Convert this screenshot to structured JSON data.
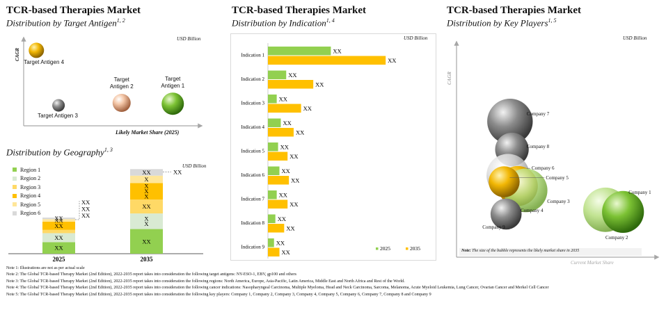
{
  "colors": {
    "indication_2025": "#92D050",
    "indication_2035": "#FFC000",
    "region_1": "#92D050",
    "region_2": "#D9EAD3",
    "region_3": "#FFD966",
    "region_4": "#FFC000",
    "region_5": "#FFE699",
    "region_6": "#D9D9D9",
    "axis": "#A6A6A6"
  },
  "panel_antigen": {
    "title": "TCR-based Therapies Market",
    "subtitle": "Distribution by Target Antigen",
    "subtitle_sup": "1, 2",
    "unit": "USD Billion",
    "ylabel": "CAGR",
    "xlabel": "Likely Market Share (2025)"
  },
  "panel_geography": {
    "subtitle": "Distribution by Geography",
    "subtitle_sup": "1, 3",
    "unit": "USD Billion"
  },
  "panel_indication": {
    "title": "TCR-based Therapies Market",
    "subtitle": "Distribution by Indication",
    "subtitle_sup": "1, 4",
    "unit": "USD Billion",
    "legend": [
      "2025",
      "2035"
    ]
  },
  "panel_players": {
    "title": "TCR-based Therapies Market",
    "subtitle": "Distribution by Key Players",
    "subtitle_sup": "1, 5",
    "unit": "USD Billion",
    "ylabel": "CAGR",
    "xlabel": "Current Market Share",
    "note_label": "Note:",
    "note_text": "The size of the bubble represents the likely market share in 2035"
  },
  "notes": [
    "Note 1: Illustrations are not as per actual scale",
    "Note 2: The Global TCR-based Therapy Market (2nd Edition), 2022-2035 report takes into consideration the following target antigens: NY-ESO-1, EBV, gp100 and others",
    "Note 3: The Global TCR-based Therapy Market (2nd Edition), 2022-2035 report takes into consideration the following regions: North America, Europe, Asia-Pacific, Latin America, Middle East and North Africa and Rest of the World.",
    "Note 4: The Global TCR-based Therapy Market (2nd Edition), 2022-2035 report takes into consideration the following cancer indications: Nasopharyngeal Carcinoma, Multiple Myeloma, Head and Neck Carcinoma, Sarcoma, Melanoma, Acute Myeloid Leukemia, Lung Cancer, Ovarian Cancer and Merkel Cell Cancer",
    "Note 5: The Global TCR-based Therapy Market (2nd Edition), 2022-2035 report takes into consideration the following key players: Company 1, Company 2, Company 3, Company 4, Company 5, Company 6, Company 7, Company 8 and Company 9"
  ],
  "chart_data": [
    {
      "type": "scatter",
      "id": "target-antigen",
      "title": "TCR-based Therapies Market",
      "subtitle": "Distribution by Target Antigen",
      "xlabel": "Likely Market Share (2025)",
      "ylabel": "CAGR",
      "grid": false,
      "points": [
        {
          "label": "Target Antigen 4",
          "x": 0.05,
          "y": 0.88,
          "size": 0.3,
          "color": "gold"
        },
        {
          "label": "Target Antigen 3",
          "x": 0.18,
          "y": 0.22,
          "size": 0.2,
          "color": "grey"
        },
        {
          "label": "Target Antigen 2",
          "x": 0.55,
          "y": 0.25,
          "size": 0.4,
          "color": "peach"
        },
        {
          "label": "Target Antigen 1",
          "x": 0.85,
          "y": 0.24,
          "size": 0.55,
          "color": "green"
        }
      ]
    },
    {
      "type": "bar",
      "id": "geography",
      "subtitle": "Distribution by Geography",
      "stacked": true,
      "categories": [
        "2025",
        "2035"
      ],
      "series": [
        {
          "name": "Region 1",
          "values": [
            14,
            30
          ],
          "labels": [
            "XX",
            "XX"
          ]
        },
        {
          "name": "Region 2",
          "values": [
            11,
            19
          ],
          "labels": [
            "XX",
            "X\nX"
          ]
        },
        {
          "name": "Region 3",
          "values": [
            4,
            17
          ],
          "labels": [
            "",
            "XX"
          ]
        },
        {
          "name": "Region 4",
          "values": [
            10,
            20
          ],
          "labels": [
            "XX",
            "X\nX\nX"
          ]
        },
        {
          "name": "Region 5",
          "values": [
            3,
            9
          ],
          "labels": [
            "XX",
            "X"
          ]
        },
        {
          "name": "Region 6",
          "values": [
            2,
            8
          ],
          "labels": [
            "XX",
            "XX"
          ]
        }
      ],
      "callouts": [
        {
          "category": "2025",
          "labels": [
            "XX",
            "XX",
            "XX"
          ]
        },
        {
          "category": "2035",
          "labels": [
            "XX"
          ]
        }
      ],
      "ylim": [
        0,
        110
      ],
      "legend": "top-left"
    },
    {
      "type": "bar",
      "id": "indication",
      "orientation": "horizontal",
      "subtitle": "Distribution by Indication",
      "categories": [
        "Indication 1",
        "Indication 2",
        "Indication 3",
        "Indication 4",
        "Indication 5",
        "Indication 6",
        "Indication 7",
        "Indication 8",
        "Indication 9"
      ],
      "series": [
        {
          "name": "2025",
          "values": [
            93,
            27,
            13,
            19,
            15,
            17,
            13,
            11,
            9
          ]
        },
        {
          "name": "2035",
          "values": [
            174,
            67,
            49,
            38,
            29,
            31,
            29,
            24,
            17
          ]
        }
      ],
      "data_label": "XX",
      "legend": "bottom-right"
    },
    {
      "type": "scatter",
      "id": "key-players",
      "subtitle": "Distribution by Key Players",
      "xlabel": "Current Market Share",
      "ylabel": "CAGR",
      "grid": false,
      "points": [
        {
          "label": "Company 7",
          "x": 0.26,
          "y": 0.63,
          "size": 0.95,
          "color": "grey"
        },
        {
          "label": "Company 8",
          "x": 0.27,
          "y": 0.5,
          "size": 0.62,
          "color": "grey"
        },
        {
          "label": "Company 6",
          "x": 0.25,
          "y": 0.38,
          "size": 0.88,
          "color": "lightgrey"
        },
        {
          "label": "Company 4",
          "x": 0.3,
          "y": 0.33,
          "size": 0.8,
          "color": "gold"
        },
        {
          "label": "Company 3",
          "x": 0.34,
          "y": 0.31,
          "size": 0.9,
          "color": "lightgreen"
        },
        {
          "label": "Company 5",
          "x": 0.23,
          "y": 0.35,
          "size": 0.55,
          "color": "gold"
        },
        {
          "label": "Company 9",
          "x": 0.24,
          "y": 0.2,
          "size": 0.55,
          "color": "grey"
        },
        {
          "label": "Company 2",
          "x": 0.75,
          "y": 0.22,
          "size": 0.92,
          "color": "lightgreen"
        },
        {
          "label": "Company 1",
          "x": 0.84,
          "y": 0.21,
          "size": 0.85,
          "color": "green"
        }
      ]
    }
  ]
}
